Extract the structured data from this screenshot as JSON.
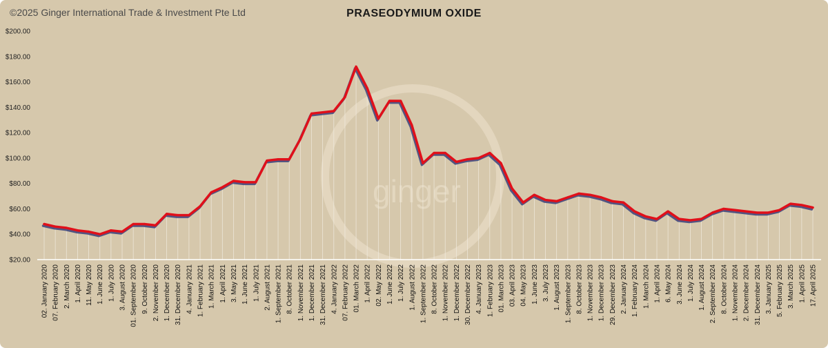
{
  "copyright": "©2025 Ginger International Trade & Investment Pte Ltd",
  "watermark": "ginger",
  "colors": {
    "background": "#d6c8ac",
    "line": "#e0101a",
    "line_shadow": "#3a3f7a",
    "drop_line": "#f2ece0"
  },
  "chart_data": {
    "type": "line",
    "title": "PRASEODYMIUM OXIDE",
    "xlabel": "",
    "ylabel": "",
    "ylim": [
      20,
      200
    ],
    "y_ticks": [
      "$200.00",
      "$180.00",
      "$160.00",
      "$140.00",
      "$120.00",
      "$100.00",
      "$80.00",
      "$60.00",
      "$40.00",
      "$20.00"
    ],
    "grid": false,
    "legend": "none",
    "x_tick_labels": [
      "02. January 2020",
      "07. February 2020",
      "2. March 2020",
      "1. April 2020",
      "11. May 2020",
      "1. June 2020",
      "1. July 2020",
      "3. August 2020",
      "01. September 2020",
      "9. October 2020",
      "2. November 2020",
      "1. December 2020",
      "31. December 2020",
      "4. January 2021",
      "1. February 2021",
      "1. March 2021",
      "1. April 2021",
      "3. May 2021",
      "1. June 2021",
      "1. July 2021",
      "2. August 2021",
      "1. September 2021",
      "8. October 2021",
      "1. November 2021",
      "1. December 2021",
      "31. December 2021",
      "4. January 2022",
      "07. February 2022",
      "01. March 2022",
      "1. April 2022",
      "02. May 2022",
      "1. June 2022",
      "1. July 2022",
      "1. August 2022",
      "1. September 2022",
      "8. October 2022",
      "1. November 2022",
      "1. December 2022",
      "30. December 2022",
      "4. January 2023",
      "1. February 2023",
      "01. March 2023",
      "03. April 2023",
      "04. May 2023",
      "1. June 2023",
      "3. July 2023",
      "1. August 2023",
      "1. September 2023",
      "8. October 2023",
      "1. November 2023",
      "1. December 2023",
      "29. December 2023",
      "2. January 2024",
      "1. February 2024",
      "1. March 2024",
      "1. April 2024",
      "6. May 2024",
      "3. June 2024",
      "1. July 2024",
      "1. August 2024",
      "2. September 2024",
      "8. October 2024",
      "1. November 2024",
      "2. December 2024",
      "31. December 2024",
      "3. January 2025",
      "5. February 2025",
      "3. March 2025",
      "1. April 2025",
      "17. April 2025"
    ],
    "series": [
      {
        "values": [
          48,
          46,
          45,
          43,
          42,
          40,
          43,
          42,
          48,
          48,
          47,
          56,
          55,
          55,
          62,
          73,
          77,
          82,
          81,
          81,
          98,
          99,
          99,
          115,
          135,
          136,
          137,
          148,
          172,
          155,
          131,
          145,
          145,
          126,
          96,
          104,
          104,
          97,
          99,
          100,
          104,
          96,
          76,
          65,
          71,
          67,
          66,
          69,
          72,
          71,
          69,
          66,
          65,
          58,
          54,
          52,
          58,
          52,
          51,
          52,
          57,
          60,
          59,
          58,
          57,
          57,
          59,
          64,
          63,
          61
        ]
      }
    ]
  }
}
